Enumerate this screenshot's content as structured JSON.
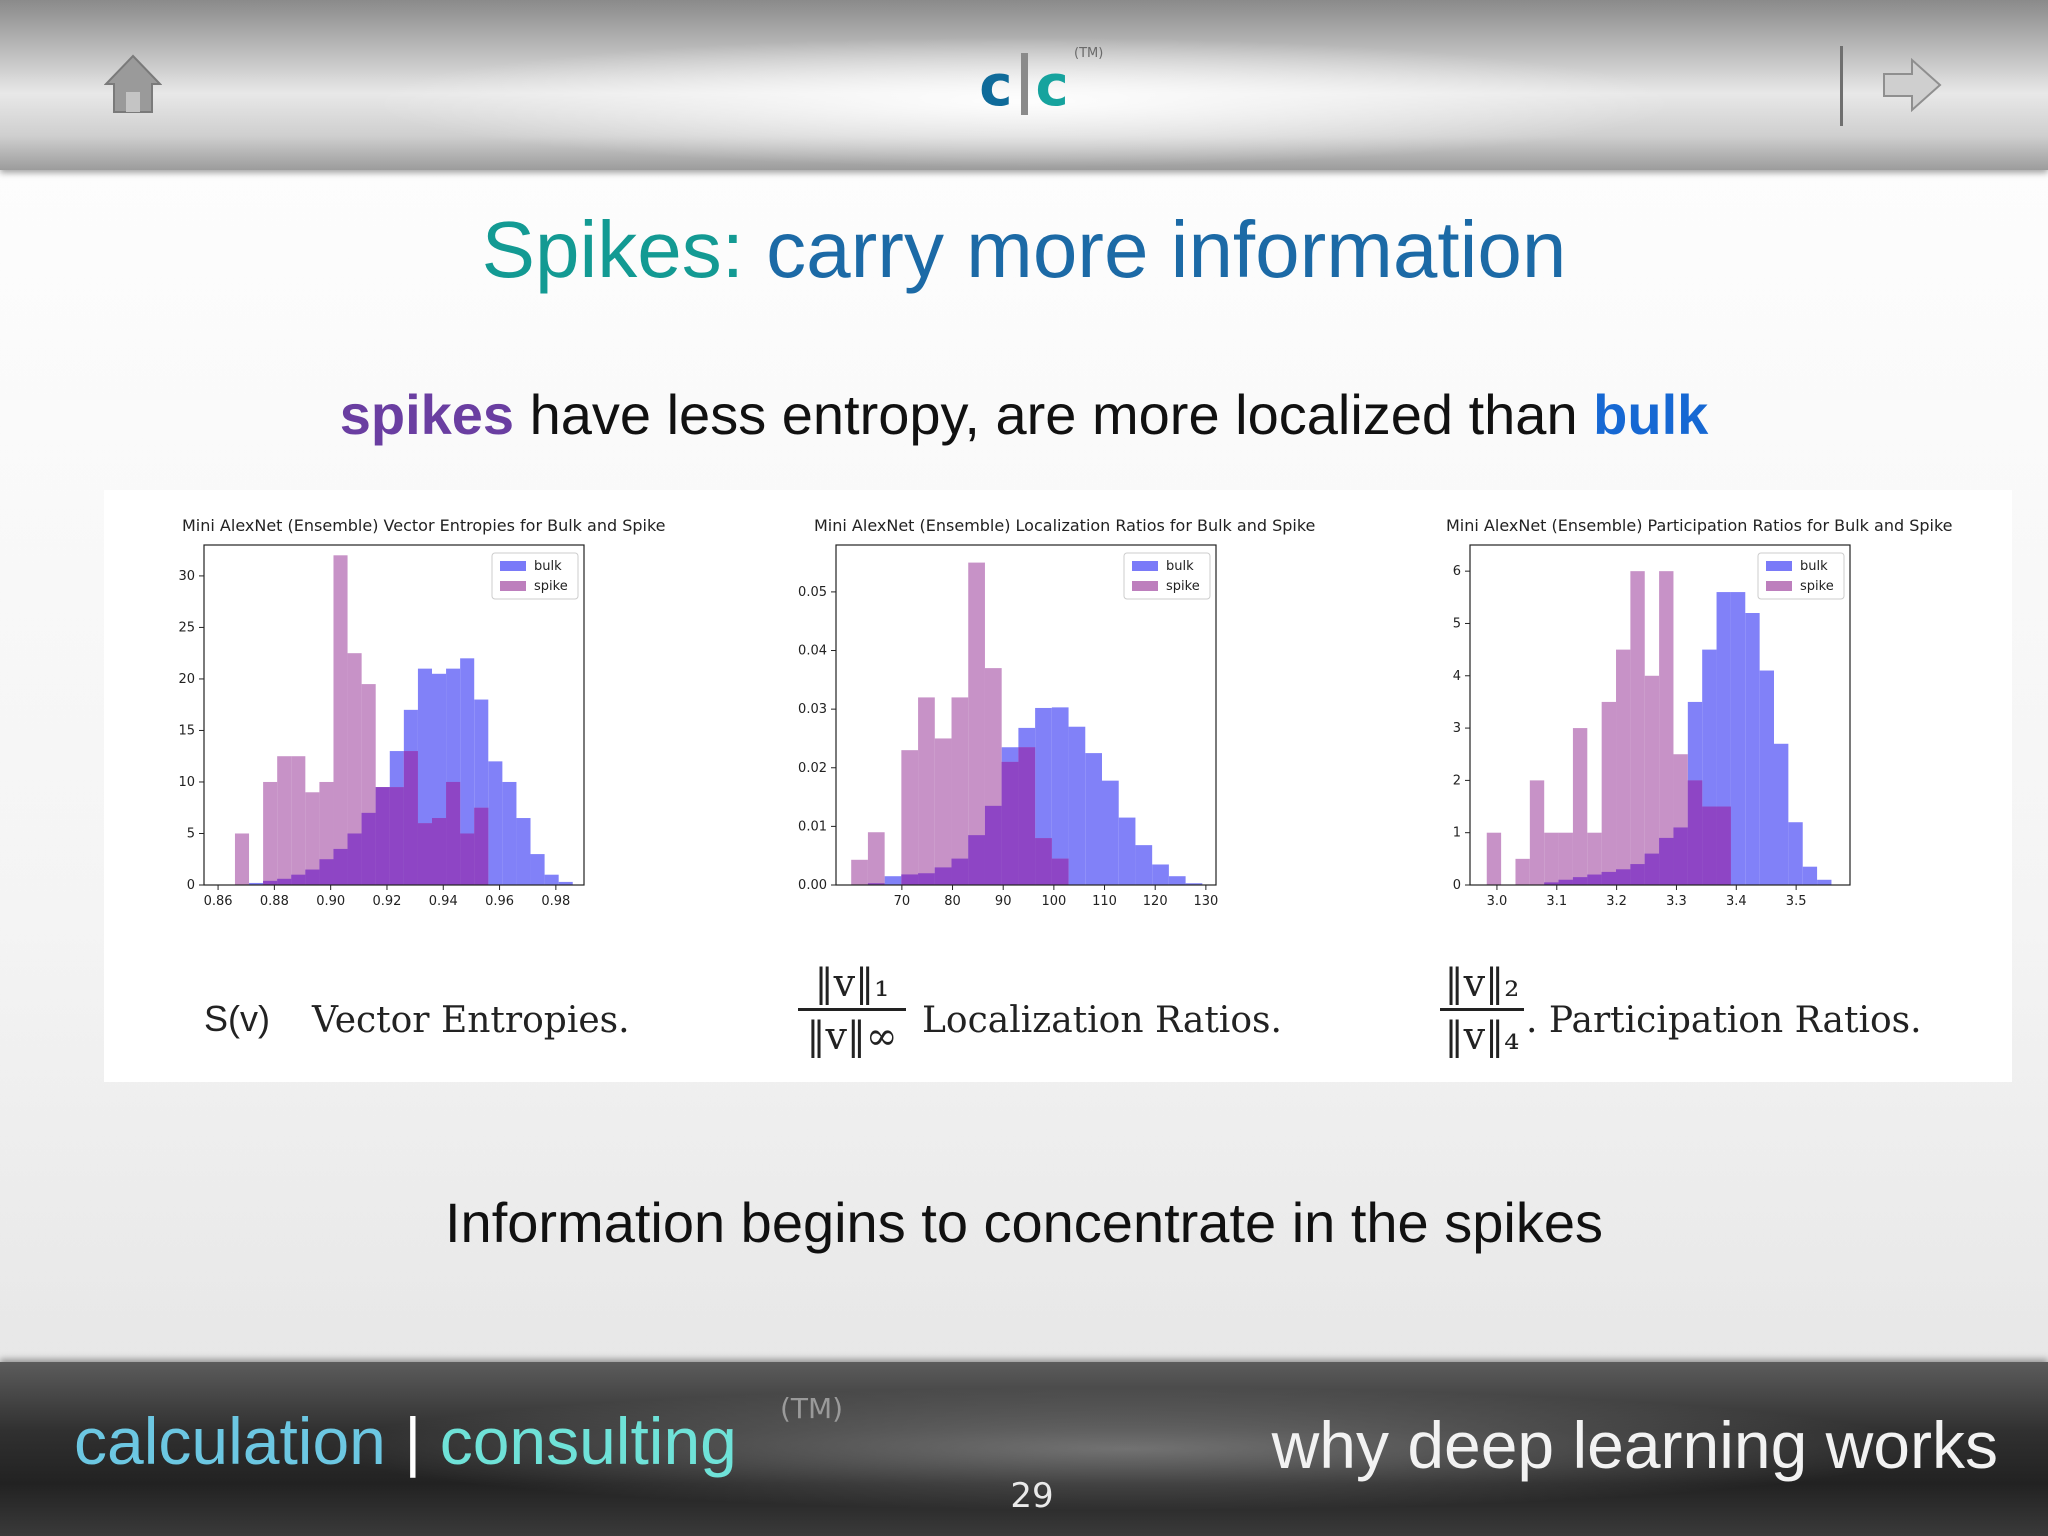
{
  "header": {
    "logo_left": "c",
    "logo_right": "c",
    "logo_tm": "(TM)",
    "home_icon": "home-icon",
    "next_icon": "arrow-right-icon"
  },
  "title": {
    "part1": "Spikes:",
    "part2": "carry more information"
  },
  "subtitle": {
    "spikes": "spikes",
    "middle": " have less entropy, are more localized than ",
    "bulk": "bulk"
  },
  "captions": {
    "entropy_symbol": "S(v)",
    "entropy": "Vector Entropies.",
    "localization_num": "‖v‖₁",
    "localization_den": "‖v‖∞",
    "localization": "Localization Ratios.",
    "participation_num": "‖v‖₂",
    "participation_den": "‖v‖₄",
    "participation": ". Participation Ratios."
  },
  "bottom_text": "Information begins to concentrate in the spikes",
  "footer": {
    "calculation": "calculation",
    "pipe": " | ",
    "consulting": "consulting",
    "tm": "(TM)",
    "right": "why deep learning works",
    "page": "29"
  },
  "colors": {
    "bulk": "#7a7af8",
    "spike": "#bd7fbd",
    "overlap": "#8a3fc4"
  },
  "chart_data": [
    {
      "type": "histogram",
      "title": "Mini AlexNet (Ensemble) Vector Entropies for Bulk and Spike",
      "legend": [
        "bulk",
        "spike"
      ],
      "legend_position": "top-right",
      "xlim": [
        0.855,
        0.99
      ],
      "ylim": [
        0,
        33
      ],
      "xticks": [
        0.86,
        0.88,
        0.9,
        0.92,
        0.94,
        0.96,
        0.98
      ],
      "xtick_labels": [
        "0.86",
        "0.88",
        "0.90",
        "0.92",
        "0.94",
        "0.96",
        "0.98"
      ],
      "yticks": [
        0,
        5,
        10,
        15,
        20,
        25,
        30
      ],
      "ytick_labels": [
        "0",
        "5",
        "10",
        "15",
        "20",
        "25",
        "30"
      ],
      "series": [
        {
          "name": "bulk",
          "x": [
            0.866,
            0.871,
            0.876,
            0.881,
            0.886,
            0.891,
            0.896,
            0.901,
            0.906,
            0.911,
            0.916,
            0.921,
            0.926,
            0.931,
            0.936,
            0.941,
            0.946,
            0.951,
            0.956,
            0.961,
            0.966,
            0.971,
            0.976,
            0.981
          ],
          "values": [
            0,
            0.2,
            0.4,
            0.6,
            1,
            1.5,
            2.5,
            3.5,
            5,
            7,
            9.5,
            13,
            17,
            21,
            20.5,
            21,
            22,
            18,
            12,
            10,
            6.5,
            3,
            1,
            0.3
          ]
        },
        {
          "name": "spike",
          "x": [
            0.866,
            0.871,
            0.876,
            0.881,
            0.886,
            0.891,
            0.896,
            0.901,
            0.906,
            0.911,
            0.916,
            0.921,
            0.926,
            0.931,
            0.936,
            0.941,
            0.946,
            0.951,
            0.956,
            0.961,
            0.966,
            0.971,
            0.976,
            0.981
          ],
          "values": [
            5,
            0,
            10,
            12.5,
            12.5,
            9,
            10,
            32,
            22.5,
            19.5,
            9.5,
            9.5,
            13,
            6,
            6.5,
            10,
            5,
            7.5,
            0,
            0,
            0,
            0,
            0,
            0
          ]
        }
      ]
    },
    {
      "type": "histogram",
      "title": "Mini AlexNet (Ensemble) Localization Ratios for Bulk and Spike",
      "legend": [
        "bulk",
        "spike"
      ],
      "legend_position": "top-right",
      "xlim": [
        57,
        132
      ],
      "ylim": [
        0,
        0.058
      ],
      "xticks": [
        70,
        80,
        90,
        100,
        110,
        120,
        130
      ],
      "xtick_labels": [
        "70",
        "80",
        "90",
        "100",
        "110",
        "120",
        "130"
      ],
      "yticks": [
        0,
        0.01,
        0.02,
        0.03,
        0.04,
        0.05
      ],
      "ytick_labels": [
        "0.00",
        "0.01",
        "0.02",
        "0.03",
        "0.04",
        "0.05"
      ],
      "series": [
        {
          "name": "bulk",
          "x": [
            60,
            63.3,
            66.6,
            69.9,
            73.2,
            76.5,
            79.8,
            83.1,
            86.4,
            89.7,
            93,
            96.3,
            99.6,
            102.9,
            106.2,
            109.5,
            112.8,
            116.1,
            119.4,
            122.7,
            126
          ],
          "values": [
            0,
            0.0003,
            0.0015,
            0.0018,
            0.002,
            0.003,
            0.0045,
            0.0085,
            0.0135,
            0.0235,
            0.0268,
            0.0302,
            0.0303,
            0.027,
            0.0225,
            0.0178,
            0.0115,
            0.0068,
            0.0035,
            0.0015,
            0.0003
          ]
        },
        {
          "name": "spike",
          "x": [
            60,
            63.3,
            66.6,
            69.9,
            73.2,
            76.5,
            79.8,
            83.1,
            86.4,
            89.7,
            93,
            96.3,
            99.6,
            102.9,
            106.2
          ],
          "values": [
            0.0043,
            0.009,
            0.0,
            0.023,
            0.032,
            0.025,
            0.032,
            0.055,
            0.037,
            0.021,
            0.0235,
            0.008,
            0.0045,
            0.0,
            0.0
          ]
        }
      ]
    },
    {
      "type": "histogram",
      "title": "Mini AlexNet (Ensemble) Participation Ratios for Bulk and Spike",
      "legend": [
        "bulk",
        "spike"
      ],
      "legend_position": "top-right",
      "xlim": [
        2.955,
        3.59
      ],
      "ylim": [
        0,
        6.5
      ],
      "xticks": [
        3.0,
        3.1,
        3.2,
        3.3,
        3.4,
        3.5
      ],
      "xtick_labels": [
        "3.0",
        "3.1",
        "3.2",
        "3.3",
        "3.4",
        "3.5"
      ],
      "yticks": [
        0,
        1,
        2,
        3,
        4,
        5,
        6
      ],
      "ytick_labels": [
        "0",
        "1",
        "2",
        "3",
        "4",
        "5",
        "6"
      ],
      "series": [
        {
          "name": "bulk",
          "x": [
            2.983,
            3.007,
            3.031,
            3.055,
            3.079,
            3.103,
            3.127,
            3.151,
            3.175,
            3.199,
            3.223,
            3.247,
            3.271,
            3.295,
            3.319,
            3.343,
            3.367,
            3.391,
            3.415,
            3.439,
            3.463,
            3.487,
            3.511,
            3.535
          ],
          "values": [
            0,
            0,
            0,
            0,
            0.05,
            0.1,
            0.15,
            0.2,
            0.25,
            0.3,
            0.4,
            0.6,
            0.9,
            1.1,
            3.5,
            4.5,
            5.6,
            5.6,
            5.2,
            4.1,
            2.7,
            1.2,
            0.35,
            0.1
          ]
        },
        {
          "name": "spike",
          "x": [
            2.983,
            3.007,
            3.031,
            3.055,
            3.079,
            3.103,
            3.127,
            3.151,
            3.175,
            3.199,
            3.223,
            3.247,
            3.271,
            3.295,
            3.319,
            3.343,
            3.367,
            3.391
          ],
          "values": [
            1.0,
            0,
            0.5,
            2.0,
            1.0,
            1.0,
            3.0,
            1.0,
            3.5,
            4.5,
            6.0,
            4.0,
            6.0,
            2.5,
            2.0,
            1.5,
            1.5,
            0
          ]
        }
      ]
    }
  ]
}
